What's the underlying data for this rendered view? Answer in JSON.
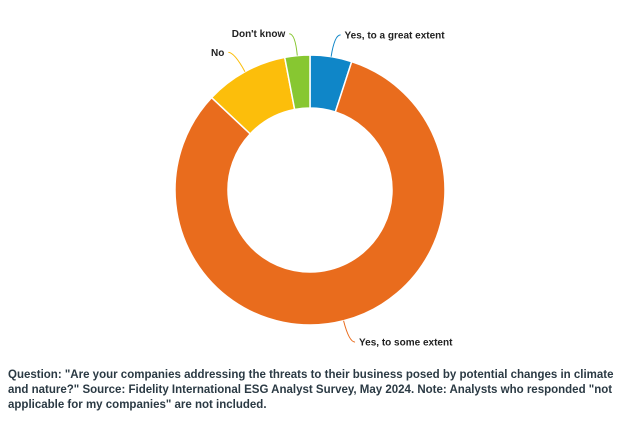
{
  "chart_data": {
    "type": "pie",
    "donut": true,
    "unit": "%",
    "categories": [
      "Yes, to a great extent",
      "Yes, to some extent",
      "No",
      "Don't know"
    ],
    "values": [
      5,
      82,
      10,
      3
    ],
    "colors": [
      "#0f86c8",
      "#e96c1d",
      "#fcbe0b",
      "#87c731"
    ],
    "legend": "none"
  },
  "caption": "Question: \"Are your companies addressing the threats to their business posed by potential changes in climate and nature?\" Source: Fidelity International ESG Analyst Survey, May 2024. Note: Analysts who responded \"not applicable for my companies\" are not included."
}
